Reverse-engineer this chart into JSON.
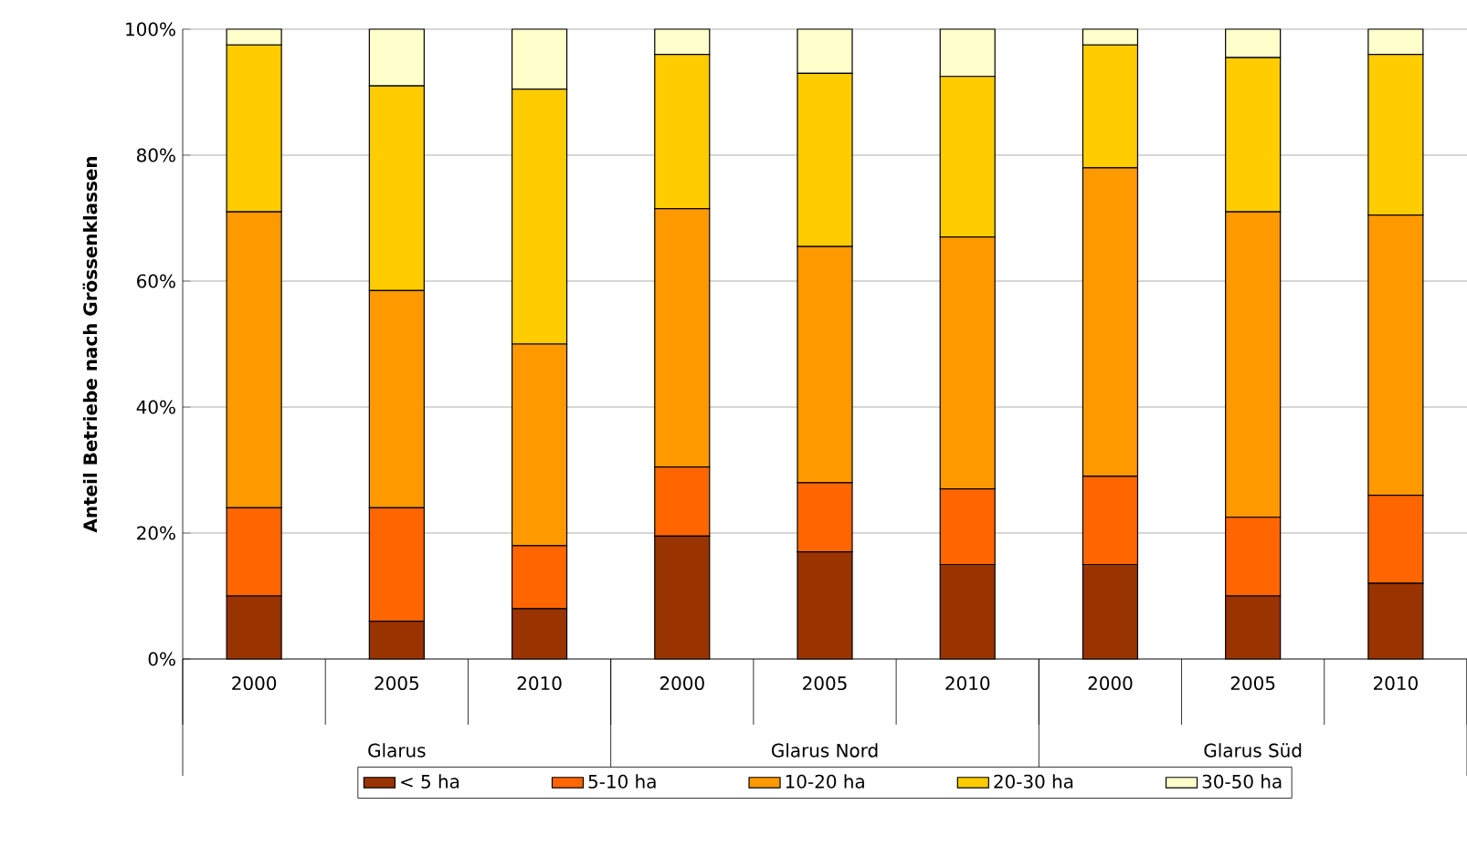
{
  "chart_data": {
    "type": "bar",
    "stacked": true,
    "ylabel": "Anteil Betriebe nach Grössenklassen",
    "categories": [
      "2000",
      "2005",
      "2010",
      "2000",
      "2005",
      "2010",
      "2000",
      "2005",
      "2010"
    ],
    "annotations": [
      "Glarus",
      "Glarus Nord",
      "Glarus Süd"
    ],
    "series": [
      {
        "name": "< 5 ha",
        "color": "#993300",
        "values": [
          10,
          6,
          8,
          19.5,
          17,
          15,
          15,
          10,
          12
        ]
      },
      {
        "name": "5-10 ha",
        "color": "#ff6600",
        "values": [
          14,
          18,
          10,
          11,
          11,
          12,
          14,
          12.5,
          14
        ]
      },
      {
        "name": "10-20 ha",
        "color": "#ff9900",
        "values": [
          47,
          34.5,
          32,
          41,
          37.5,
          40,
          49,
          48.5,
          44.5
        ]
      },
      {
        "name": "20-30 ha",
        "color": "#ffcc00",
        "values": [
          26.5,
          32.5,
          40.5,
          24.5,
          27.5,
          25.5,
          19.5,
          24.5,
          25.5
        ]
      },
      {
        "name": "30-50 ha",
        "color": "#ffffcc",
        "values": [
          2.5,
          9,
          9.5,
          4,
          7,
          7.5,
          2.5,
          4.5,
          4
        ]
      }
    ],
    "ylim": [
      0,
      100
    ],
    "yticks": [
      {
        "value": 0,
        "label": "0%"
      },
      {
        "value": 20,
        "label": "20%"
      },
      {
        "value": 40,
        "label": "40%"
      },
      {
        "value": 60,
        "label": "60%"
      },
      {
        "value": 80,
        "label": "80%"
      },
      {
        "value": 100,
        "label": "100%"
      }
    ],
    "grid": "y",
    "legend": "bottom"
  }
}
